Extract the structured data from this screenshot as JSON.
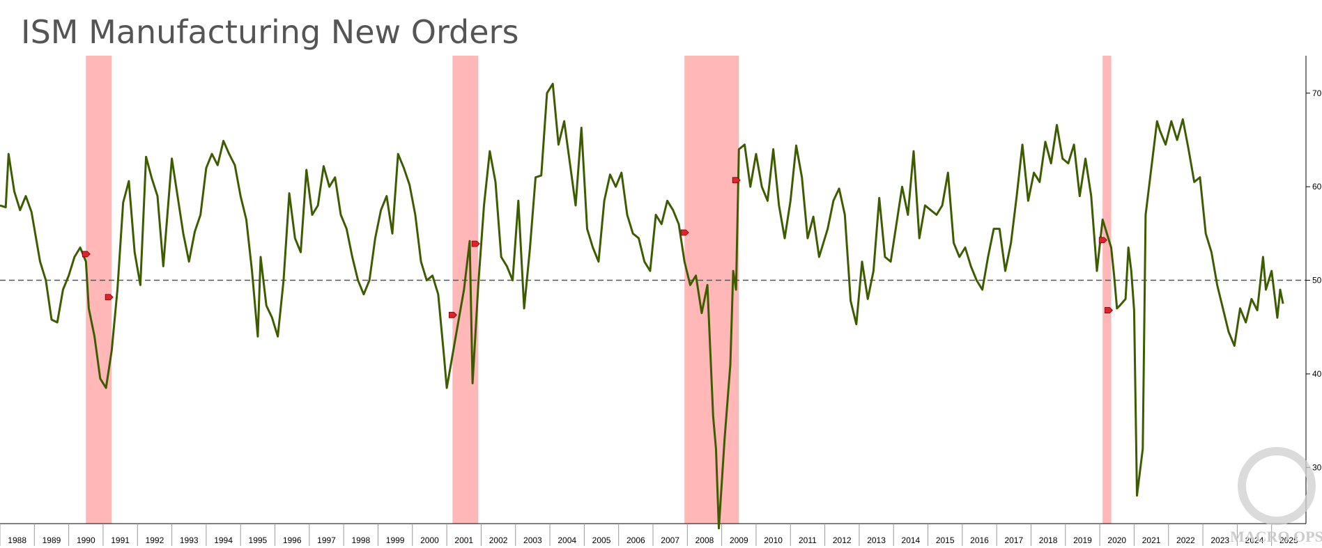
{
  "title": "ISM Manufacturing New Orders",
  "watermark": "MACRO OPS",
  "colors": {
    "line": "#3d5c00",
    "recession": "#ffaaaa",
    "reference": "#555555",
    "marker": "#e0222a",
    "point": "#f5a623"
  },
  "chart_data": {
    "type": "line",
    "title": "ISM Manufacturing New Orders",
    "xlabel": "",
    "ylabel": "",
    "xlim": [
      "1988-01",
      "2025-12"
    ],
    "ylim": [
      24,
      74
    ],
    "y_ticks": [
      30,
      40,
      50,
      60,
      70
    ],
    "y_axis_position": "right",
    "reference_line": {
      "y": 50,
      "style": "dashed"
    },
    "x_ticks": [
      "1988",
      "1989",
      "1990",
      "1991",
      "1992",
      "1993",
      "1994",
      "1995",
      "1996",
      "1997",
      "1998",
      "1999",
      "2000",
      "2001",
      "2002",
      "2003",
      "2004",
      "2005",
      "2006",
      "2007",
      "2008",
      "2009",
      "2010",
      "2011",
      "2012",
      "2013",
      "2014",
      "2015",
      "2016",
      "2017",
      "2018",
      "2019",
      "2020",
      "2021",
      "2022",
      "2023",
      "2024",
      "2025"
    ],
    "recession_bands": [
      {
        "start": "1990-07",
        "end": "1991-03"
      },
      {
        "start": "2001-03",
        "end": "2001-11"
      },
      {
        "start": "2007-12",
        "end": "2009-06"
      },
      {
        "start": "2020-02",
        "end": "2020-04"
      }
    ],
    "markers": [
      {
        "x": "1990-07",
        "y": 52.8
      },
      {
        "x": "1991-03",
        "y": 48.2
      },
      {
        "x": "2001-03",
        "y": 46.3
      },
      {
        "x": "2001-11",
        "y": 53.9
      },
      {
        "x": "2007-12",
        "y": 55.1
      },
      {
        "x": "2009-06",
        "y": 60.7
      },
      {
        "x": "2020-02",
        "y": 54.3
      },
      {
        "x": "2020-04",
        "y": 46.8
      }
    ],
    "series": [
      {
        "points": [
          [
            "1988-01",
            58.0
          ],
          [
            "1988-03",
            57.8
          ],
          [
            "1988-04",
            63.5
          ],
          [
            "1988-06",
            59.5
          ],
          [
            "1988-08",
            57.5
          ],
          [
            "1988-10",
            59.0
          ],
          [
            "1988-12",
            57.3
          ],
          [
            "1989-03",
            52.0
          ],
          [
            "1989-05",
            50.0
          ],
          [
            "1989-07",
            45.8
          ],
          [
            "1989-09",
            45.5
          ],
          [
            "1989-11",
            49.0
          ],
          [
            "1990-01",
            50.5
          ],
          [
            "1990-03",
            52.5
          ],
          [
            "1990-05",
            53.5
          ],
          [
            "1990-07",
            52.0
          ],
          [
            "1990-08",
            47.0
          ],
          [
            "1990-10",
            44.0
          ],
          [
            "1990-12",
            39.5
          ],
          [
            "1991-02",
            38.5
          ],
          [
            "1991-04",
            42.5
          ],
          [
            "1991-06",
            49.0
          ],
          [
            "1991-08",
            58.3
          ],
          [
            "1991-10",
            60.6
          ],
          [
            "1991-12",
            53.0
          ],
          [
            "1992-02",
            49.5
          ],
          [
            "1992-04",
            63.2
          ],
          [
            "1992-06",
            60.9
          ],
          [
            "1992-08",
            59.0
          ],
          [
            "1992-10",
            51.5
          ],
          [
            "1993-01",
            63.0
          ],
          [
            "1993-03",
            59.0
          ],
          [
            "1993-05",
            55.0
          ],
          [
            "1993-07",
            52.0
          ],
          [
            "1993-09",
            55.2
          ],
          [
            "1993-11",
            57.0
          ],
          [
            "1994-01",
            62.0
          ],
          [
            "1994-03",
            63.5
          ],
          [
            "1994-05",
            62.3
          ],
          [
            "1994-07",
            64.9
          ],
          [
            "1994-09",
            63.5
          ],
          [
            "1994-11",
            62.3
          ],
          [
            "1995-01",
            59.0
          ],
          [
            "1995-03",
            56.5
          ],
          [
            "1995-05",
            51.0
          ],
          [
            "1995-07",
            44.0
          ],
          [
            "1995-08",
            52.5
          ],
          [
            "1995-10",
            47.3
          ],
          [
            "1995-12",
            46.0
          ],
          [
            "1996-02",
            44.0
          ],
          [
            "1996-04",
            50.0
          ],
          [
            "1996-06",
            59.3
          ],
          [
            "1996-08",
            54.5
          ],
          [
            "1996-10",
            53.0
          ],
          [
            "1996-12",
            61.8
          ],
          [
            "1997-02",
            57.0
          ],
          [
            "1997-04",
            58.0
          ],
          [
            "1997-06",
            62.2
          ],
          [
            "1997-08",
            60.0
          ],
          [
            "1997-10",
            61.0
          ],
          [
            "1997-12",
            57.0
          ],
          [
            "1998-02",
            55.5
          ],
          [
            "1998-04",
            52.5
          ],
          [
            "1998-06",
            50.0
          ],
          [
            "1998-08",
            48.5
          ],
          [
            "1998-10",
            50.0
          ],
          [
            "1998-12",
            54.5
          ],
          [
            "1999-02",
            57.5
          ],
          [
            "1999-04",
            59.0
          ],
          [
            "1999-06",
            55.0
          ],
          [
            "1999-08",
            63.5
          ],
          [
            "1999-10",
            62.0
          ],
          [
            "1999-12",
            60.2
          ],
          [
            "2000-02",
            57.0
          ],
          [
            "2000-04",
            52.0
          ],
          [
            "2000-06",
            50.0
          ],
          [
            "2000-08",
            50.5
          ],
          [
            "2000-10",
            48.5
          ],
          [
            "2000-12",
            42.0
          ],
          [
            "2001-01",
            38.5
          ],
          [
            "2001-03",
            42.0
          ],
          [
            "2001-05",
            45.5
          ],
          [
            "2001-07",
            49.0
          ],
          [
            "2001-09",
            54.2
          ],
          [
            "2001-10",
            39.0
          ],
          [
            "2001-12",
            49.5
          ],
          [
            "2002-02",
            58.0
          ],
          [
            "2002-04",
            63.8
          ],
          [
            "2002-06",
            60.5
          ],
          [
            "2002-08",
            52.5
          ],
          [
            "2002-10",
            51.5
          ],
          [
            "2002-12",
            50.0
          ],
          [
            "2003-02",
            58.5
          ],
          [
            "2003-04",
            47.0
          ],
          [
            "2003-06",
            53.3
          ],
          [
            "2003-08",
            61.0
          ],
          [
            "2003-10",
            61.2
          ],
          [
            "2003-12",
            70.0
          ],
          [
            "2004-02",
            71.0
          ],
          [
            "2004-04",
            64.5
          ],
          [
            "2004-06",
            67.0
          ],
          [
            "2004-08",
            62.5
          ],
          [
            "2004-10",
            58.0
          ],
          [
            "2004-12",
            66.3
          ],
          [
            "2005-02",
            55.5
          ],
          [
            "2005-04",
            53.5
          ],
          [
            "2005-06",
            52.0
          ],
          [
            "2005-08",
            58.5
          ],
          [
            "2005-10",
            61.3
          ],
          [
            "2005-12",
            60.0
          ],
          [
            "2006-02",
            61.5
          ],
          [
            "2006-04",
            57.0
          ],
          [
            "2006-06",
            55.0
          ],
          [
            "2006-08",
            54.5
          ],
          [
            "2006-10",
            52.0
          ],
          [
            "2006-12",
            51.0
          ],
          [
            "2007-02",
            57.0
          ],
          [
            "2007-04",
            56.0
          ],
          [
            "2007-06",
            58.5
          ],
          [
            "2007-08",
            57.5
          ],
          [
            "2007-10",
            56.0
          ],
          [
            "2007-12",
            52.0
          ],
          [
            "2008-02",
            49.5
          ],
          [
            "2008-04",
            50.5
          ],
          [
            "2008-06",
            46.5
          ],
          [
            "2008-08",
            49.5
          ],
          [
            "2008-10",
            35.5
          ],
          [
            "2008-11",
            32.0
          ],
          [
            "2008-12",
            23.5
          ],
          [
            "2009-02",
            33.0
          ],
          [
            "2009-04",
            41.0
          ],
          [
            "2009-05",
            51.0
          ],
          [
            "2009-06",
            49.0
          ],
          [
            "2009-07",
            64.0
          ],
          [
            "2009-09",
            64.5
          ],
          [
            "2009-11",
            60.0
          ],
          [
            "2010-01",
            63.5
          ],
          [
            "2010-03",
            60.0
          ],
          [
            "2010-05",
            58.5
          ],
          [
            "2010-07",
            64.0
          ],
          [
            "2010-09",
            58.0
          ],
          [
            "2010-11",
            54.5
          ],
          [
            "2011-01",
            58.5
          ],
          [
            "2011-03",
            64.4
          ],
          [
            "2011-05",
            61.0
          ],
          [
            "2011-07",
            54.5
          ],
          [
            "2011-09",
            56.8
          ],
          [
            "2011-11",
            52.5
          ],
          [
            "2012-02",
            55.5
          ],
          [
            "2012-04",
            58.5
          ],
          [
            "2012-06",
            59.8
          ],
          [
            "2012-08",
            57.0
          ],
          [
            "2012-10",
            47.8
          ],
          [
            "2012-12",
            45.3
          ],
          [
            "2013-02",
            52.0
          ],
          [
            "2013-04",
            48.0
          ],
          [
            "2013-06",
            51.0
          ],
          [
            "2013-08",
            58.8
          ],
          [
            "2013-10",
            52.5
          ],
          [
            "2013-12",
            52.0
          ],
          [
            "2014-02",
            56.0
          ],
          [
            "2014-04",
            60.0
          ],
          [
            "2014-06",
            57.0
          ],
          [
            "2014-08",
            63.8
          ],
          [
            "2014-10",
            54.5
          ],
          [
            "2014-12",
            58.0
          ],
          [
            "2015-02",
            57.5
          ],
          [
            "2015-04",
            57.0
          ],
          [
            "2015-06",
            58.0
          ],
          [
            "2015-08",
            61.5
          ],
          [
            "2015-10",
            54.0
          ],
          [
            "2015-12",
            52.5
          ],
          [
            "2016-02",
            53.5
          ],
          [
            "2016-04",
            51.5
          ],
          [
            "2016-06",
            50.0
          ],
          [
            "2016-08",
            49.0
          ],
          [
            "2016-10",
            52.5
          ],
          [
            "2016-12",
            55.5
          ],
          [
            "2017-02",
            55.5
          ],
          [
            "2017-04",
            51.0
          ],
          [
            "2017-06",
            54.0
          ],
          [
            "2017-08",
            59.0
          ],
          [
            "2017-10",
            64.5
          ],
          [
            "2017-12",
            58.5
          ],
          [
            "2018-02",
            61.5
          ],
          [
            "2018-04",
            60.5
          ],
          [
            "2018-06",
            64.8
          ],
          [
            "2018-08",
            62.5
          ],
          [
            "2018-10",
            66.6
          ],
          [
            "2018-12",
            63.0
          ],
          [
            "2019-02",
            62.5
          ],
          [
            "2019-04",
            64.5
          ],
          [
            "2019-06",
            59.0
          ],
          [
            "2019-08",
            63.0
          ],
          [
            "2019-10",
            59.0
          ],
          [
            "2019-12",
            51.0
          ],
          [
            "2020-02",
            56.5
          ],
          [
            "2020-04",
            54.5
          ],
          [
            "2020-05",
            53.5
          ],
          [
            "2020-06",
            50.5
          ],
          [
            "2020-07",
            47.0
          ],
          [
            "2020-08",
            47.3
          ],
          [
            "2020-10",
            48.0
          ],
          [
            "2020-11",
            53.5
          ],
          [
            "2020-12",
            51.0
          ],
          [
            "2021-01",
            46.8
          ],
          [
            "2021-02",
            27.0
          ],
          [
            "2021-04",
            32.0
          ],
          [
            "2021-05",
            57.0
          ],
          [
            "2021-07",
            62.0
          ],
          [
            "2021-09",
            67.0
          ],
          [
            "2021-10",
            66.0
          ],
          [
            "2021-12",
            64.5
          ],
          [
            "2022-02",
            67.0
          ],
          [
            "2022-04",
            65.0
          ],
          [
            "2022-06",
            67.2
          ],
          [
            "2022-08",
            64.0
          ],
          [
            "2022-10",
            60.5
          ],
          [
            "2022-12",
            61.0
          ],
          [
            "2023-02",
            55.0
          ],
          [
            "2023-04",
            53.0
          ],
          [
            "2023-06",
            49.5
          ],
          [
            "2023-08",
            47.0
          ],
          [
            "2023-10",
            44.5
          ],
          [
            "2023-12",
            43.0
          ],
          [
            "2024-02",
            47.0
          ],
          [
            "2024-04",
            45.5
          ],
          [
            "2024-06",
            48.0
          ],
          [
            "2024-08",
            46.8
          ],
          [
            "2024-10",
            52.5
          ],
          [
            "2024-11",
            49.0
          ],
          [
            "2025-01",
            51.0
          ],
          [
            "2025-03",
            46.0
          ],
          [
            "2025-04",
            49.0
          ],
          [
            "2025-05",
            47.5
          ]
        ]
      }
    ]
  }
}
